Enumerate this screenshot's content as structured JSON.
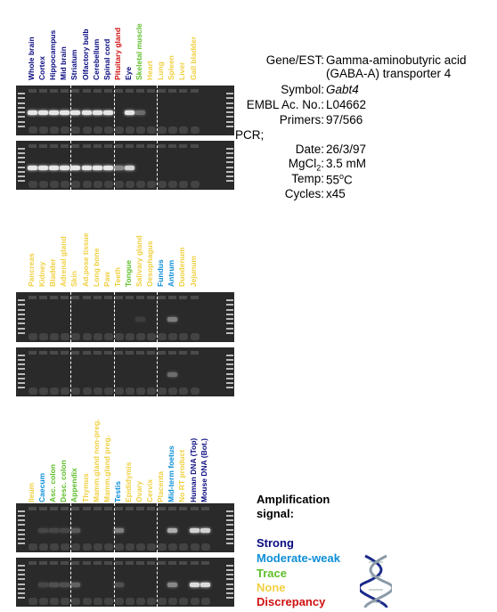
{
  "colors": {
    "strong": "#0a0a80",
    "moderate_weak": "#0e8fd8",
    "trace": "#5fbf2a",
    "none": "#f0d040",
    "discrepancy": "#d01010"
  },
  "panels": [
    {
      "lanes": [
        {
          "label": "Whole brain",
          "signal": "strong"
        },
        {
          "label": "Cortex",
          "signal": "strong"
        },
        {
          "label": "Hippocampus",
          "signal": "strong"
        },
        {
          "label": "Mid brain",
          "signal": "strong"
        },
        {
          "label": "Striatum",
          "signal": "strong"
        },
        {
          "label": "Olfactory bulb",
          "signal": "strong"
        },
        {
          "label": "Cerebellum",
          "signal": "strong"
        },
        {
          "label": "Spinal cord",
          "signal": "strong"
        },
        {
          "label": "Pituitary gland",
          "signal": "discrepancy"
        },
        {
          "label": "Eye",
          "signal": "strong"
        },
        {
          "label": "Skeletal muscle",
          "signal": "trace"
        },
        {
          "label": "Heart",
          "signal": "none"
        },
        {
          "label": "Lung",
          "signal": "none"
        },
        {
          "label": "Spleen",
          "signal": "none"
        },
        {
          "label": "Liver",
          "signal": "none"
        },
        {
          "label": "Gall bladder",
          "signal": "none"
        }
      ]
    },
    {
      "lanes": [
        {
          "label": "Pancreas",
          "signal": "none"
        },
        {
          "label": "Kidney",
          "signal": "none"
        },
        {
          "label": "Bladder",
          "signal": "none"
        },
        {
          "label": "Adrenal gland",
          "signal": "none"
        },
        {
          "label": "Skin",
          "signal": "none"
        },
        {
          "label": "Ad.pose tissue",
          "signal": "none"
        },
        {
          "label": "Long bone",
          "signal": "none"
        },
        {
          "label": "Paw",
          "signal": "none"
        },
        {
          "label": "Teeth",
          "signal": "none"
        },
        {
          "label": "Tongue",
          "signal": "trace"
        },
        {
          "label": "Salivary gland",
          "signal": "none"
        },
        {
          "label": "Oesophagus",
          "signal": "none"
        },
        {
          "label": "Fundus",
          "signal": "moderate_weak"
        },
        {
          "label": "Antrum",
          "signal": "moderate_weak"
        },
        {
          "label": "Duodenum",
          "signal": "none"
        },
        {
          "label": "Jejunum",
          "signal": "none"
        }
      ]
    },
    {
      "lanes": [
        {
          "label": "Ileum",
          "signal": "none"
        },
        {
          "label": "Caecum",
          "signal": "moderate_weak"
        },
        {
          "label": "Asc. colon",
          "signal": "trace"
        },
        {
          "label": "Desc. colon",
          "signal": "trace"
        },
        {
          "label": "Appendix",
          "signal": "trace"
        },
        {
          "label": "Thymus",
          "signal": "none"
        },
        {
          "label": "Mamm.gland non-preg.",
          "signal": "none"
        },
        {
          "label": "Mamm.gland preg.",
          "signal": "none"
        },
        {
          "label": "Testis",
          "signal": "moderate_weak"
        },
        {
          "label": "Epididymis",
          "signal": "none"
        },
        {
          "label": "Ovary",
          "signal": "none"
        },
        {
          "label": "Cervix",
          "signal": "none"
        },
        {
          "label": "Placenta",
          "signal": "none"
        },
        {
          "label": "Mid-term foetus",
          "signal": "moderate_weak"
        },
        {
          "label": "No RT product",
          "signal": "none"
        },
        {
          "label": "Human DNA (Top)",
          "signal": "strong"
        },
        {
          "label": "Mouse DNA (Bot.)",
          "signal": "strong"
        }
      ]
    }
  ],
  "info": {
    "gene_key": "Gene/EST:",
    "gene_value_line1": "Gamma-aminobutyric acid",
    "gene_value_line2": "(GABA-A) transporter 4",
    "symbol_key": "Symbol:",
    "symbol_value": "Gabt4",
    "embl_key": "EMBL Ac. No.:",
    "embl_value": "L04662",
    "primers_key": "Primers:",
    "primers_value": "97/566",
    "pcr_label": "PCR;",
    "date_key": "Date:",
    "date_value": "26/3/97",
    "mgcl_key_main": "MgCl",
    "mgcl_key_sub": "2",
    "mgcl_key_colon": ":",
    "mgcl_value": "3.5 mM",
    "temp_key": "Temp:",
    "temp_value_num": "55",
    "temp_value_sup": "o",
    "temp_value_unit": "C",
    "cycles_key": "Cycles:",
    "cycles_value": "x45"
  },
  "legend": {
    "title_line1": "Amplification",
    "title_line2": "signal:",
    "strong": "Strong",
    "moderate_weak": "Moderate-weak",
    "trace": "Trace",
    "none": "None",
    "discrepancy": "Discrepancy"
  },
  "gels": [
    {
      "panel": 0,
      "intensity": [
        1,
        1,
        1,
        1,
        1,
        1,
        1,
        1,
        0,
        1,
        0.35,
        0,
        0,
        0,
        0,
        0
      ]
    },
    {
      "panel": 0,
      "intensity": [
        1,
        1,
        1,
        1,
        1,
        1,
        1,
        1,
        0.5,
        0.9,
        0,
        0,
        0,
        0,
        0,
        0
      ]
    },
    {
      "panel": 1,
      "intensity": [
        0,
        0,
        0,
        0,
        0,
        0,
        0,
        0,
        0,
        0,
        0.1,
        0,
        0,
        0.45,
        0,
        0
      ]
    },
    {
      "panel": 1,
      "intensity": [
        0,
        0,
        0,
        0,
        0,
        0,
        0,
        0,
        0,
        0,
        0,
        0,
        0,
        0.35,
        0,
        0
      ]
    },
    {
      "panel": 2,
      "intensity": [
        0,
        0.15,
        0.15,
        0.15,
        0.25,
        0,
        0,
        0,
        0.45,
        0,
        0,
        0,
        0,
        0.7,
        0,
        0.9,
        0.9
      ]
    },
    {
      "panel": 2,
      "intensity": [
        0,
        0.15,
        0.2,
        0.2,
        0.3,
        0,
        0,
        0,
        0.2,
        0,
        0,
        0,
        0,
        0.5,
        0,
        0.95,
        0.95
      ]
    }
  ]
}
